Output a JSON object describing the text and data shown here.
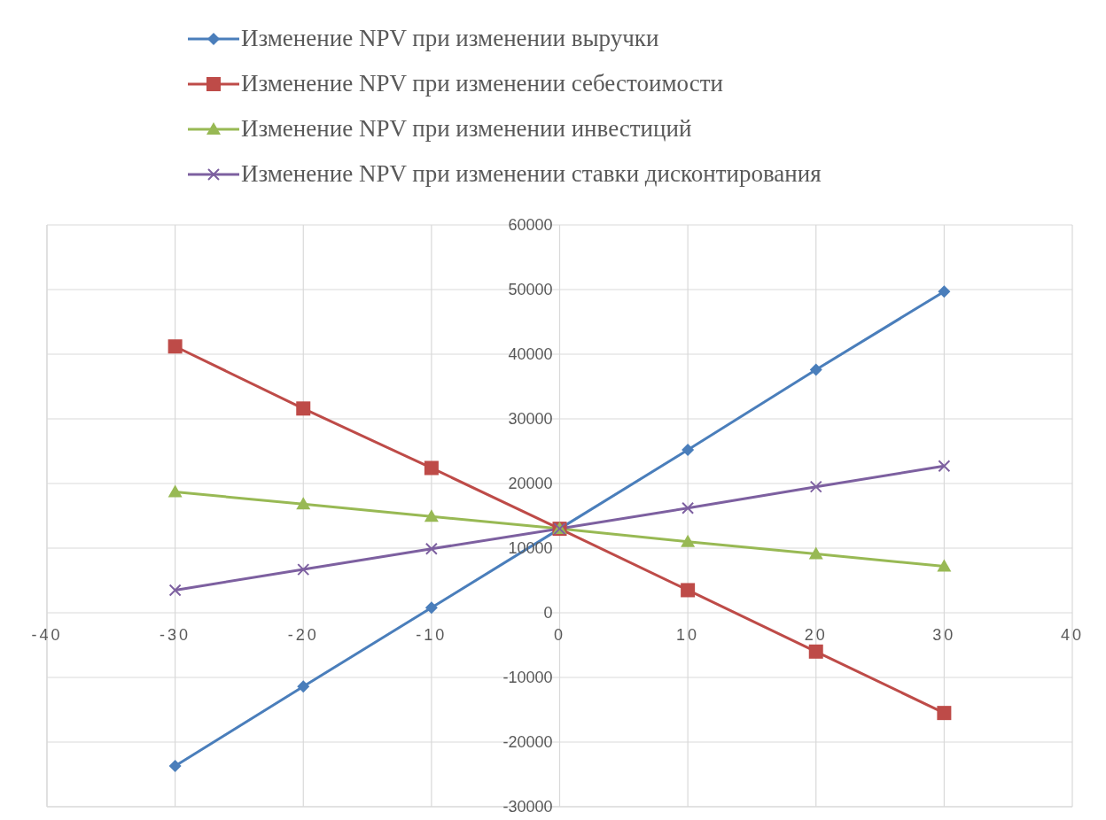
{
  "chart_data": {
    "type": "line",
    "x": [
      -30,
      -20,
      -10,
      0,
      10,
      20,
      30
    ],
    "xlim": [
      -40,
      40
    ],
    "xticks": [
      -40,
      -30,
      -20,
      -10,
      0,
      10,
      20,
      30,
      40
    ],
    "ylim": [
      -30000,
      60000
    ],
    "yticks": [
      -30000,
      -20000,
      -10000,
      0,
      10000,
      20000,
      30000,
      40000,
      50000,
      60000
    ],
    "grid": true,
    "legend": "top",
    "line_style": "solid",
    "series": [
      {
        "name": "Изменение NPV при изменении выручки",
        "color": "#4a7ebb",
        "marker": "diamond",
        "values": [
          -23700,
          -11400,
          800,
          13000,
          25200,
          37600,
          49700
        ]
      },
      {
        "name": "Изменение NPV при изменении себестоимости",
        "color": "#be4b48",
        "marker": "square",
        "values": [
          41200,
          31600,
          22400,
          13000,
          3500,
          -6000,
          -15500
        ]
      },
      {
        "name": "Изменение NPV при изменении инвестиций",
        "color": "#98b954",
        "marker": "triangle",
        "values": [
          18700,
          16800,
          14900,
          13000,
          11000,
          9100,
          7200
        ]
      },
      {
        "name": "Изменение NPV при изменении ставки дисконтирования",
        "color": "#7d60a0",
        "marker": "cross",
        "values": [
          3500,
          6700,
          9900,
          13000,
          16200,
          19500,
          22700
        ]
      }
    ]
  }
}
